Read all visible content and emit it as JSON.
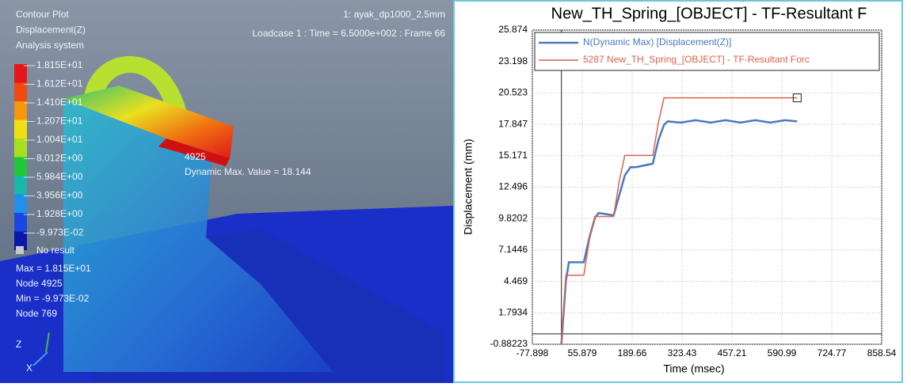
{
  "contour_panel": {
    "title_lines": [
      "Contour Plot",
      "Displacement(Z)",
      "Analysis system"
    ],
    "model": "1: ayak_dp1000_2.5mm",
    "loadcase": "Loadcase 1 : Time = 6.5000e+002 : Frame 66",
    "legend_levels": [
      "1.815E+01",
      "1.612E+01",
      "1.410E+01",
      "1.207E+01",
      "1.004E+01",
      "8.012E+00",
      "5.984E+00",
      "3.956E+00",
      "1.928E+00",
      "-9.973E-02"
    ],
    "legend_colors": [
      "#e8141c",
      "#f04a10",
      "#f8960c",
      "#f0e010",
      "#a8e020",
      "#20c838",
      "#18b8a8",
      "#2090e8",
      "#1848e0",
      "#0818a8"
    ],
    "no_result": "No result",
    "stats": [
      "Max = 1.815E+01",
      "Node 4925",
      "Min = -9.973E-02",
      "Node 769"
    ],
    "annotation_node": "4925",
    "annotation_value": "Dynamic Max. Value =  18.144",
    "axis_labels": [
      "Z",
      "X"
    ]
  },
  "chart_data": {
    "type": "line",
    "title": "New_TH_Spring_[OBJECT] - TF-Resultant F",
    "x_label": "Time (msec)",
    "y_label": "Displacement (mm)",
    "x": [
      0,
      12,
      20,
      60,
      75,
      90,
      100,
      140,
      155,
      170,
      185,
      200,
      245,
      260,
      275,
      285,
      320,
      360,
      400,
      440,
      480,
      520,
      560,
      600,
      632
    ],
    "series": [
      {
        "name": "N(Dynamic Max) [Displacement(Z)]",
        "color": "#4a78c0",
        "values": [
          -0.88,
          4.5,
          6.1,
          6.1,
          8.2,
          9.9,
          10.3,
          10.1,
          11.8,
          13.5,
          14.2,
          14.2,
          14.5,
          16.5,
          17.8,
          18.1,
          18.0,
          18.2,
          18.0,
          18.2,
          18.0,
          18.2,
          18.0,
          18.2,
          18.1
        ]
      },
      {
        "name": "5287 New_TH_Spring_[OBJECT] - TF-Resultant Forc",
        "color": "#d9634a",
        "marker": "square",
        "values": [
          -0.88,
          5.0,
          5.0,
          5.0,
          8.0,
          10.0,
          10.0,
          10.0,
          13.0,
          15.2,
          15.2,
          15.2,
          15.2,
          18.0,
          20.1,
          20.1,
          20.1,
          20.1,
          20.1,
          20.1,
          20.1,
          20.1,
          20.1,
          20.1,
          20.1
        ]
      }
    ],
    "xlim": [
      -77.898,
      858.54
    ],
    "xticks": [
      -77.898,
      55.879,
      189.66,
      323.43,
      457.21,
      590.99,
      724.77,
      858.54
    ],
    "ylim": [
      -0.88223,
      25.874
    ],
    "yticks": [
      -0.88223,
      1.7934,
      4.469,
      7.1446,
      9.8202,
      12.496,
      15.171,
      17.847,
      20.523,
      23.198,
      25.874
    ],
    "grid": true
  }
}
